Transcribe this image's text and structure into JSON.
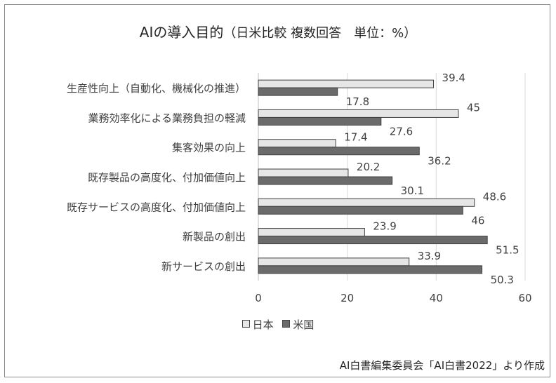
{
  "chart_data": {
    "type": "bar",
    "orientation": "horizontal",
    "title": "AIの導入目的",
    "subtitle": "（日米比較 複数回答　単位：%）",
    "categories": [
      "生産性向上（自動化、機械化の推進）",
      "業務効率化による業務負担の軽減",
      "集客効果の向上",
      "既存製品の高度化、付加価値向上",
      "既存サービスの高度化、付加価値向上",
      "新製品の創出",
      "新サービスの創出"
    ],
    "series": [
      {
        "name": "日本",
        "values": [
          39.4,
          45,
          17.4,
          20.2,
          48.6,
          23.9,
          33.9
        ],
        "color": "#e6e6e6"
      },
      {
        "name": "米国",
        "values": [
          17.8,
          27.6,
          36.2,
          30.1,
          46,
          51.5,
          50.3
        ],
        "color": "#6b6b6b"
      }
    ],
    "xlim": [
      0,
      60
    ],
    "xticks": [
      "0",
      "20",
      "40",
      "60"
    ],
    "grid": true,
    "legend_position": "bottom",
    "source": "AI白書編集委員会「AI白書2022」より作成"
  }
}
